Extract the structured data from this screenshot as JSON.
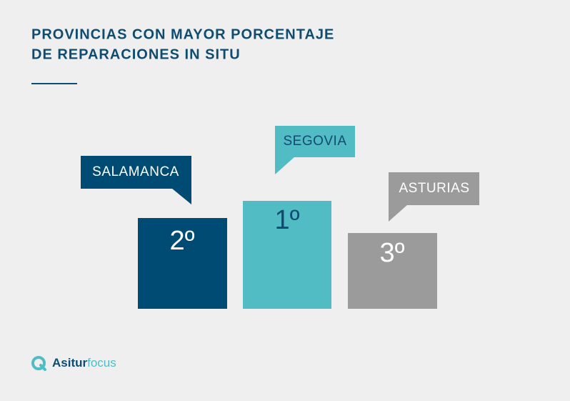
{
  "title": [
    "PROVINCIAS CON MAYOR PORCENTAJE",
    "DE REPARACIONES IN SITU"
  ],
  "podium": [
    {
      "label": "SALAMANCA",
      "rank": "2º"
    },
    {
      "label": "SEGOVIA",
      "rank": "1º"
    },
    {
      "label": "ASTURIAS",
      "rank": "3º"
    }
  ],
  "brand": {
    "name": "Asitur",
    "suffix": "focus"
  }
}
